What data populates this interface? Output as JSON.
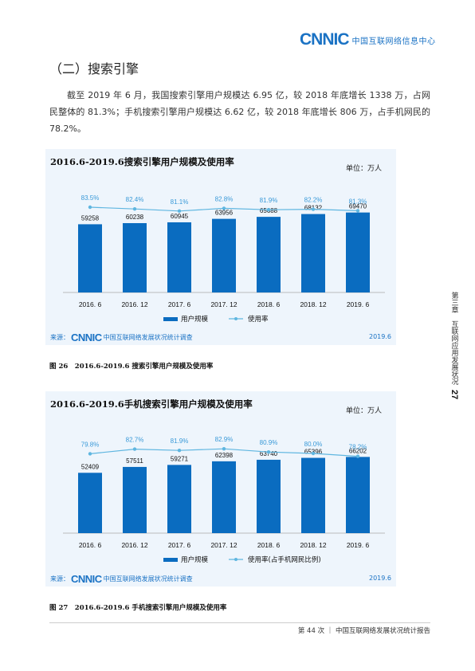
{
  "header": {
    "logo_mark": "CNNIC",
    "logo_text": "中国互联网络信息中心"
  },
  "section_title": "（二）搜索引擎",
  "paragraph": "截至 2019 年 6 月，我国搜索引擎用户规模达 6.95 亿，较 2018 年底增长 1338 万，占网民整体的 81.3%；手机搜索引擎用户规模达 6.62 亿，较 2018 年底增长 806 万，占手机网民的 78.2%。",
  "chart1": {
    "title": "2016.6-2019.6搜索引擎用户规模及使用率",
    "unit": "单位：万人",
    "source_prefix": "来源：",
    "source_mark": "CNNIC",
    "source_text": "中国互联网络发展状况统计调查",
    "source_date": "2019.6",
    "caption": "图 26　2016.6-2019.6 搜索引擎用户规模及使用率"
  },
  "chart2": {
    "title": "2016.6-2019.6手机搜索引擎用户规模及使用率",
    "unit": "单位：万人",
    "source_prefix": "来源：",
    "source_mark": "CNNIC",
    "source_text": "中国互联网络发展状况统计调查",
    "source_date": "2019.6",
    "caption": "图 27　2016.6-2019.6 手机搜索引擎用户规模及使用率"
  },
  "chart_data": [
    {
      "type": "bar",
      "title": "2016.6-2019.6搜索引擎用户规模及使用率",
      "categories": [
        "2016. 6",
        "2016. 12",
        "2017. 6",
        "2017. 12",
        "2018. 6",
        "2018. 12",
        "2019. 6"
      ],
      "series": [
        {
          "name": "用户规模",
          "type": "bar",
          "values": [
            59258,
            60238,
            60945,
            63956,
            65688,
            68132,
            69470
          ],
          "labels": [
            "59258",
            "60238",
            "60945",
            "63956",
            "65688",
            "68132",
            "69470"
          ],
          "color": "#0a6cc0"
        },
        {
          "name": "使用率",
          "type": "line",
          "values": [
            83.5,
            82.4,
            81.1,
            82.8,
            81.9,
            82.2,
            81.3
          ],
          "labels": [
            "83.5%",
            "82.4%",
            "81.1%",
            "82.8%",
            "81.9%",
            "82.2%",
            "81.3%"
          ],
          "color": "#5fb6e0"
        }
      ],
      "ylim": [
        0,
        90000
      ],
      "rate_ylim": [
        70,
        90
      ],
      "legend": "bottom"
    },
    {
      "type": "bar",
      "title": "2016.6-2019.6手机搜索引擎用户规模及使用率",
      "categories": [
        "2016. 6",
        "2016. 12",
        "2017. 6",
        "2017. 12",
        "2018. 6",
        "2018. 12",
        "2019. 6"
      ],
      "series": [
        {
          "name": "用户规模",
          "type": "bar",
          "values": [
            52409,
            57511,
            59271,
            62398,
            63740,
            65396,
            66202
          ],
          "labels": [
            "52409",
            "57511",
            "59271",
            "62398",
            "63740",
            "65396",
            "66202"
          ],
          "color": "#0a6cc0"
        },
        {
          "name": "使用率(占手机网民比例)",
          "type": "line",
          "values": [
            79.8,
            82.7,
            81.9,
            82.9,
            80.9,
            80.0,
            78.2
          ],
          "labels": [
            "79.8%",
            "82.7%",
            "81.9%",
            "82.9%",
            "80.9%",
            "80.0%",
            "78.2%"
          ],
          "color": "#5fb6e0"
        }
      ],
      "ylim": [
        0,
        90000
      ],
      "rate_ylim": [
        70,
        90
      ],
      "legend": "bottom"
    }
  ],
  "side_label": {
    "chapter": "第三章　互联网应用发展状况",
    "page": "27"
  },
  "footer": {
    "text": "第 44 次 ｜ 中国互联网络发展状况统计报告"
  }
}
